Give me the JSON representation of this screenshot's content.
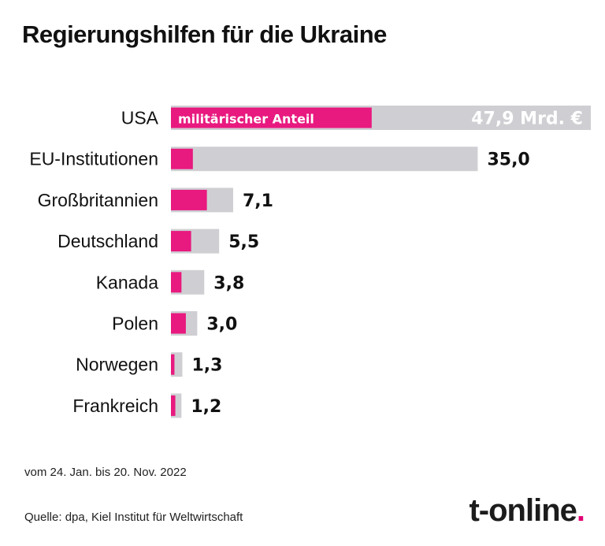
{
  "header": {
    "title": "Regierungshilfen für die Ukraine"
  },
  "footer": {
    "period": "vom 24. Jan. bis 20. Nov. 2022",
    "source": "Quelle: dpa, Kiel Institut für Weltwirtschaft"
  },
  "logo": {
    "text": "t-online",
    "dot": "."
  },
  "colors": {
    "total_bar": "#cfcfd3",
    "military_bar": "#e8197f",
    "label_text": "#111111",
    "brand": "#e20074"
  },
  "chart_data": {
    "type": "bar",
    "orientation": "horizontal",
    "title": "Regierungshilfen für die Ukraine",
    "categories": [
      "USA",
      "EU-Institutionen",
      "Großbritannien",
      "Deutschland",
      "Kanada",
      "Polen",
      "Norwegen",
      "Frankreich"
    ],
    "series": [
      {
        "values": [
          47.9,
          35.0,
          7.1,
          5.5,
          3.8,
          3.0,
          1.3,
          1.2
        ]
      },
      {
        "name": "militärischer Anteil",
        "values": [
          22.9,
          2.5,
          4.1,
          2.3,
          1.2,
          1.7,
          0.4,
          0.5
        ]
      }
    ],
    "data_labels": [
      "47,9 Mrd. €",
      "35,0",
      "7,1",
      "5,5",
      "3,8",
      "3,0",
      "1,3",
      "1,2"
    ],
    "xlim": [
      0,
      47.9
    ],
    "grid": false,
    "legend": "inside first bar"
  }
}
